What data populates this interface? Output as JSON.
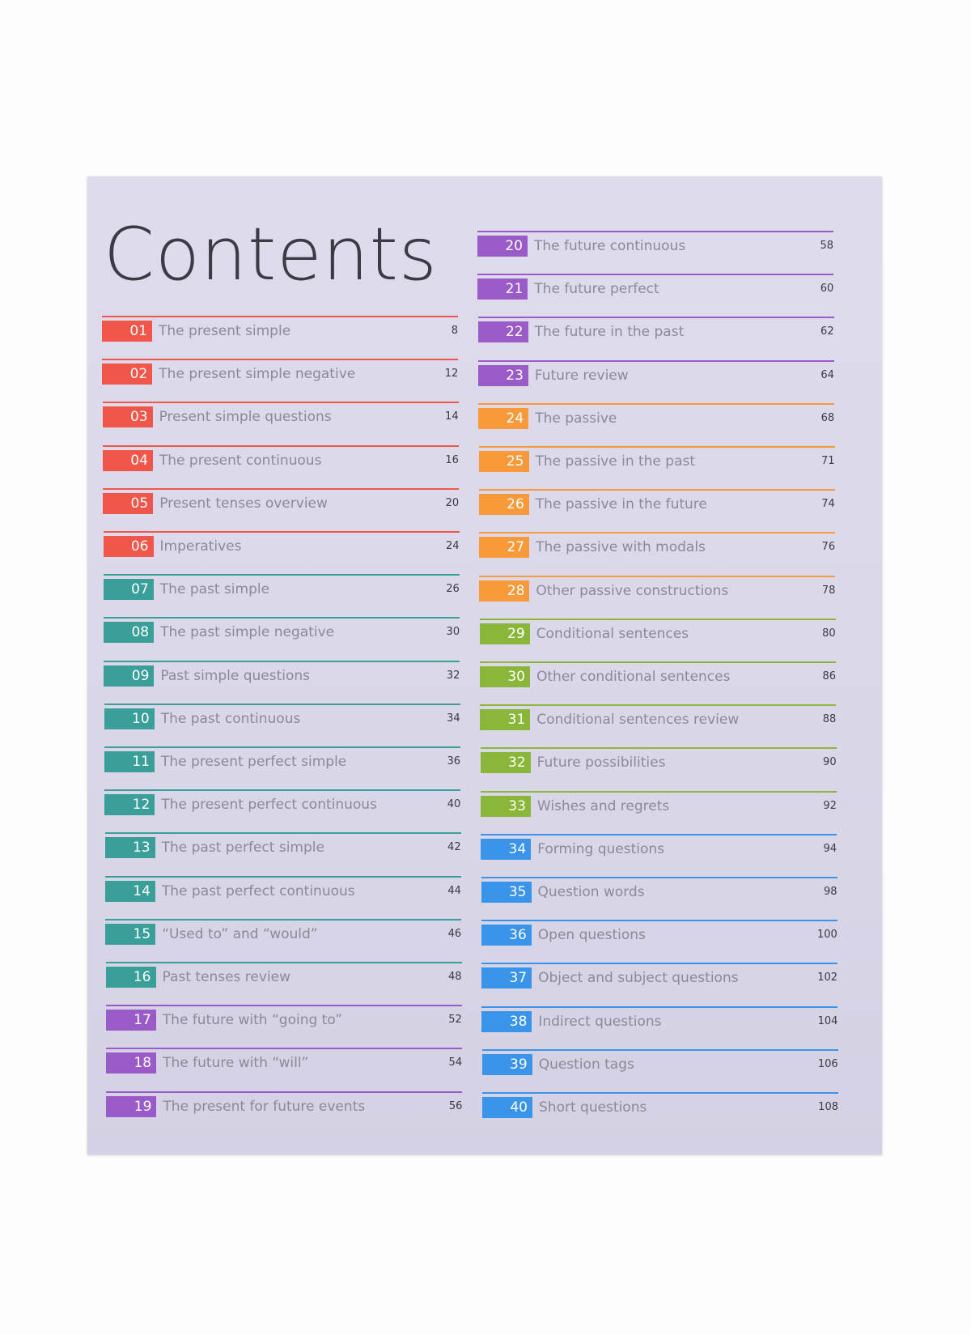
{
  "header": {
    "title": "Contents"
  },
  "entries": [
    {
      "number": "01",
      "title": "The present simple",
      "page": 8,
      "color": "#f0564a"
    },
    {
      "number": "02",
      "title": "The present simple negative",
      "page": 12,
      "color": "#f0564a"
    },
    {
      "number": "03",
      "title": "Present simple questions",
      "page": 14,
      "color": "#f0564a"
    },
    {
      "number": "04",
      "title": "The present continuous",
      "page": 16,
      "color": "#f0564a"
    },
    {
      "number": "05",
      "title": "Present tenses overview",
      "page": 20,
      "color": "#f0564a"
    },
    {
      "number": "06",
      "title": "Imperatives",
      "page": 24,
      "color": "#f0564a"
    },
    {
      "number": "07",
      "title": "The past simple",
      "page": 26,
      "color": "#3a9f98"
    },
    {
      "number": "08",
      "title": "The past simple negative",
      "page": 30,
      "color": "#3a9f98"
    },
    {
      "number": "09",
      "title": "Past simple questions",
      "page": 32,
      "color": "#3a9f98"
    },
    {
      "number": "10",
      "title": "The past continuous",
      "page": 34,
      "color": "#3a9f98"
    },
    {
      "number": "11",
      "title": "The present perfect simple",
      "page": 36,
      "color": "#3a9f98"
    },
    {
      "number": "12",
      "title": "The present perfect continuous",
      "page": 40,
      "color": "#3a9f98"
    },
    {
      "number": "13",
      "title": "The past perfect simple",
      "page": 42,
      "color": "#3a9f98"
    },
    {
      "number": "14",
      "title": "The past perfect continuous",
      "page": 44,
      "color": "#3a9f98"
    },
    {
      "number": "15",
      "title": "“Used to” and “would”",
      "page": 46,
      "color": "#3a9f98"
    },
    {
      "number": "16",
      "title": "Past tenses review",
      "page": 48,
      "color": "#3a9f98"
    },
    {
      "number": "17",
      "title": "The future with “going to”",
      "page": 52,
      "color": "#9a5bc8"
    },
    {
      "number": "18",
      "title": "The future with “will”",
      "page": 54,
      "color": "#9a5bc8"
    },
    {
      "number": "19",
      "title": "The present for future events",
      "page": 56,
      "color": "#9a5bc8"
    },
    {
      "number": "20",
      "title": "The future continuous",
      "page": 58,
      "color": "#9a5bc8"
    },
    {
      "number": "21",
      "title": "The future perfect",
      "page": 60,
      "color": "#9a5bc8"
    },
    {
      "number": "22",
      "title": "The future in the past",
      "page": 62,
      "color": "#9a5bc8"
    },
    {
      "number": "23",
      "title": "Future review",
      "page": 64,
      "color": "#9a5bc8"
    },
    {
      "number": "24",
      "title": "The passive",
      "page": 68,
      "color": "#f99a3a"
    },
    {
      "number": "25",
      "title": "The passive in the past",
      "page": 71,
      "color": "#f99a3a"
    },
    {
      "number": "26",
      "title": "The passive in the future",
      "page": 74,
      "color": "#f99a3a"
    },
    {
      "number": "27",
      "title": "The passive with modals",
      "page": 76,
      "color": "#f99a3a"
    },
    {
      "number": "28",
      "title": "Other passive constructions",
      "page": 78,
      "color": "#f99a3a"
    },
    {
      "number": "29",
      "title": "Conditional sentences",
      "page": 80,
      "color": "#8ab63a"
    },
    {
      "number": "30",
      "title": "Other conditional sentences",
      "page": 86,
      "color": "#8ab63a"
    },
    {
      "number": "31",
      "title": "Conditional sentences review",
      "page": 88,
      "color": "#8ab63a"
    },
    {
      "number": "32",
      "title": "Future possibilities",
      "page": 90,
      "color": "#8ab63a"
    },
    {
      "number": "33",
      "title": "Wishes and regrets",
      "page": 92,
      "color": "#8ab63a"
    },
    {
      "number": "34",
      "title": "Forming questions",
      "page": 94,
      "color": "#3a94ea"
    },
    {
      "number": "35",
      "title": "Question words",
      "page": 98,
      "color": "#3a94ea"
    },
    {
      "number": "36",
      "title": "Open questions",
      "page": 100,
      "color": "#3a94ea"
    },
    {
      "number": "37",
      "title": "Object and subject questions",
      "page": 102,
      "color": "#3a94ea"
    },
    {
      "number": "38",
      "title": "Indirect questions",
      "page": 104,
      "color": "#3a94ea"
    },
    {
      "number": "39",
      "title": "Question tags",
      "page": 106,
      "color": "#3a94ea"
    },
    {
      "number": "40",
      "title": "Short questions",
      "page": 108,
      "color": "#3a94ea"
    }
  ]
}
